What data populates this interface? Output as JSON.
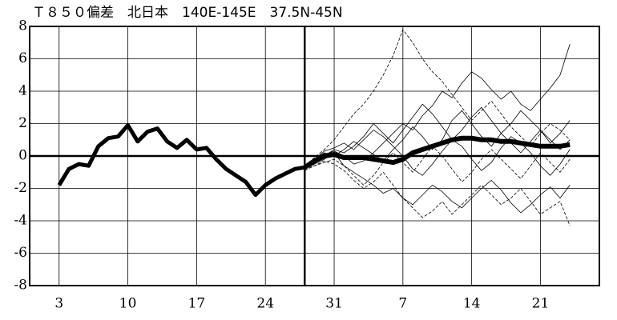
{
  "chart_data": {
    "type": "line",
    "title": "Ｔ８５０偏差　北日本　140E-145E　37.5N-45N",
    "x": [
      3,
      4,
      5,
      6,
      7,
      8,
      9,
      10,
      11,
      12,
      13,
      14,
      15,
      16,
      17,
      18,
      19,
      20,
      21,
      22,
      23,
      24,
      25,
      26,
      27,
      28,
      29,
      30,
      31,
      32,
      33,
      34,
      35,
      36,
      37,
      38,
      39,
      40,
      41,
      42,
      43,
      44,
      45,
      46,
      47,
      48,
      49,
      50,
      51,
      52,
      53,
      54,
      55
    ],
    "xlim": [
      0,
      58
    ],
    "xticks": [
      3,
      10,
      17,
      24,
      31,
      {
        "value": 38,
        "label": "7"
      },
      {
        "value": 45,
        "label": "14"
      },
      {
        "value": 52,
        "label": "21"
      }
    ],
    "ylim": [
      -8,
      8
    ],
    "yticks": [
      8,
      6,
      4,
      2,
      0,
      -2,
      -4,
      -6,
      -8
    ],
    "vline": 28,
    "grid": true,
    "series": [
      {
        "color": "#000000",
        "width": 5,
        "dash": false,
        "values": [
          -1.8,
          -0.8,
          -0.5,
          -0.6,
          0.6,
          1.1,
          1.2,
          1.9,
          0.9,
          1.5,
          1.7,
          0.9,
          0.5,
          1.0,
          0.4,
          0.5,
          -0.2,
          -0.8,
          -1.2,
          -1.6,
          -2.4,
          -1.8,
          -1.4,
          -1.1,
          -0.8,
          -0.7,
          null,
          null,
          null,
          null,
          null,
          null,
          null,
          null,
          null,
          null,
          null,
          null,
          null,
          null,
          null,
          null,
          null,
          null,
          null,
          null,
          null,
          null,
          null,
          null,
          null,
          null,
          null
        ]
      },
      {
        "color": "#000000",
        "width": 0.8,
        "dash": false,
        "values": [
          null,
          null,
          null,
          null,
          null,
          null,
          null,
          null,
          null,
          null,
          null,
          null,
          null,
          null,
          null,
          null,
          null,
          null,
          null,
          null,
          null,
          null,
          null,
          null,
          null,
          -0.7,
          -0.4,
          0.1,
          0.3,
          0.0,
          -0.5,
          -0.3,
          0.2,
          0.8,
          1.4,
          2.0,
          1.6,
          2.5,
          3.1,
          4.0,
          3.6,
          4.5,
          5.2,
          4.8,
          4.1,
          3.5,
          4.0,
          3.2,
          2.8,
          3.5,
          4.2,
          5.0,
          6.9
        ]
      },
      {
        "color": "#000000",
        "width": 0.8,
        "dash": false,
        "values": [
          null,
          null,
          null,
          null,
          null,
          null,
          null,
          null,
          null,
          null,
          null,
          null,
          null,
          null,
          null,
          null,
          null,
          null,
          null,
          null,
          null,
          null,
          null,
          null,
          null,
          -0.8,
          -0.5,
          -0.2,
          0.2,
          -0.6,
          -1.0,
          -1.4,
          -1.8,
          -2.3,
          -2.0,
          -2.6,
          -3.0,
          -2.4,
          -1.8,
          -2.2,
          -2.8,
          -3.2,
          -2.6,
          -2.0,
          -1.5,
          -2.1,
          -2.9,
          -3.5,
          -3.0,
          -2.4,
          -1.9,
          -2.6,
          -1.8
        ]
      },
      {
        "color": "#000000",
        "width": 0.8,
        "dash": false,
        "values": [
          null,
          null,
          null,
          null,
          null,
          null,
          null,
          null,
          null,
          null,
          null,
          null,
          null,
          null,
          null,
          null,
          null,
          null,
          null,
          null,
          null,
          null,
          null,
          null,
          null,
          -0.7,
          -0.2,
          0.3,
          0.5,
          0.8,
          0.4,
          1.0,
          1.6,
          1.2,
          0.6,
          0.0,
          -0.8,
          -1.2,
          -0.5,
          0.3,
          1.0,
          0.6,
          -0.2,
          -0.9,
          -0.4,
          0.5,
          1.2,
          0.8,
          0.2,
          -0.6,
          -1.2,
          -0.5,
          0.4
        ]
      },
      {
        "color": "#000000",
        "width": 0.8,
        "dash": true,
        "values": [
          null,
          null,
          null,
          null,
          null,
          null,
          null,
          null,
          null,
          null,
          null,
          null,
          null,
          null,
          null,
          null,
          null,
          null,
          null,
          null,
          null,
          null,
          null,
          null,
          null,
          -0.6,
          -0.1,
          0.4,
          1.0,
          1.8,
          2.6,
          3.2,
          4.0,
          5.0,
          6.2,
          7.8,
          7.0,
          6.0,
          5.2,
          4.6,
          3.8,
          3.0,
          2.2,
          2.8,
          3.4,
          2.6,
          1.8,
          1.2,
          0.6,
          1.4,
          2.0,
          1.6,
          1.0
        ]
      },
      {
        "color": "#000000",
        "width": 0.8,
        "dash": true,
        "values": [
          null,
          null,
          null,
          null,
          null,
          null,
          null,
          null,
          null,
          null,
          null,
          null,
          null,
          null,
          null,
          null,
          null,
          null,
          null,
          null,
          null,
          null,
          null,
          null,
          null,
          -0.9,
          -0.6,
          -0.3,
          -0.5,
          -0.9,
          -1.5,
          -2.0,
          -1.6,
          -1.0,
          -1.8,
          -2.6,
          -3.2,
          -3.8,
          -3.4,
          -2.8,
          -3.6,
          -3.0,
          -2.4,
          -1.8,
          -2.4,
          -3.0,
          -2.6,
          -2.0,
          -2.8,
          -3.6,
          -3.2,
          -2.8,
          -4.3
        ]
      },
      {
        "color": "#000000",
        "width": 0.8,
        "dash": false,
        "values": [
          null,
          null,
          null,
          null,
          null,
          null,
          null,
          null,
          null,
          null,
          null,
          null,
          null,
          null,
          null,
          null,
          null,
          null,
          null,
          null,
          null,
          null,
          null,
          null,
          null,
          -0.7,
          -0.3,
          0.0,
          0.4,
          0.2,
          0.6,
          1.2,
          2.0,
          1.4,
          0.8,
          1.6,
          2.4,
          3.2,
          2.6,
          1.8,
          1.0,
          1.6,
          2.4,
          3.0,
          2.2,
          1.4,
          2.0,
          2.8,
          2.2,
          1.6,
          0.8,
          1.4,
          2.2
        ]
      },
      {
        "color": "#000000",
        "width": 0.8,
        "dash": true,
        "values": [
          null,
          null,
          null,
          null,
          null,
          null,
          null,
          null,
          null,
          null,
          null,
          null,
          null,
          null,
          null,
          null,
          null,
          null,
          null,
          null,
          null,
          null,
          null,
          null,
          null,
          -0.8,
          -0.6,
          -0.4,
          -0.2,
          -0.6,
          -1.2,
          -1.8,
          -1.2,
          -0.4,
          0.2,
          -0.4,
          -1.0,
          -0.2,
          0.6,
          0.0,
          -0.8,
          -1.6,
          -1.0,
          -0.2,
          0.4,
          -0.2,
          -0.8,
          -1.4,
          -0.6,
          0.2,
          -0.4,
          -1.0,
          -0.2
        ]
      },
      {
        "color": "#000000",
        "width": 0.8,
        "dash": false,
        "values": [
          null,
          null,
          null,
          null,
          null,
          null,
          null,
          null,
          null,
          null,
          null,
          null,
          null,
          null,
          null,
          null,
          null,
          null,
          null,
          null,
          null,
          null,
          null,
          null,
          null,
          -0.7,
          -0.2,
          0.2,
          0.0,
          0.4,
          0.9,
          0.5,
          0.1,
          -0.3,
          0.4,
          1.0,
          1.8,
          1.2,
          0.4,
          1.0,
          2.2,
          2.8,
          2.0,
          1.2,
          0.6,
          1.4,
          0.8,
          0.2,
          0.9,
          1.6,
          1.0,
          0.4,
          1.0
        ]
      },
      {
        "color": "#000000",
        "width": 6,
        "dash": false,
        "values": [
          null,
          null,
          null,
          null,
          null,
          null,
          null,
          null,
          null,
          null,
          null,
          null,
          null,
          null,
          null,
          null,
          null,
          null,
          null,
          null,
          null,
          null,
          null,
          null,
          null,
          -0.7,
          -0.3,
          0.0,
          0.1,
          -0.1,
          -0.1,
          -0.1,
          -0.2,
          -0.3,
          -0.4,
          -0.2,
          0.2,
          0.4,
          0.6,
          0.8,
          1.0,
          1.1,
          1.1,
          1.0,
          1.0,
          0.9,
          0.9,
          0.8,
          0.7,
          0.6,
          0.6,
          0.6,
          0.7
        ]
      }
    ]
  }
}
